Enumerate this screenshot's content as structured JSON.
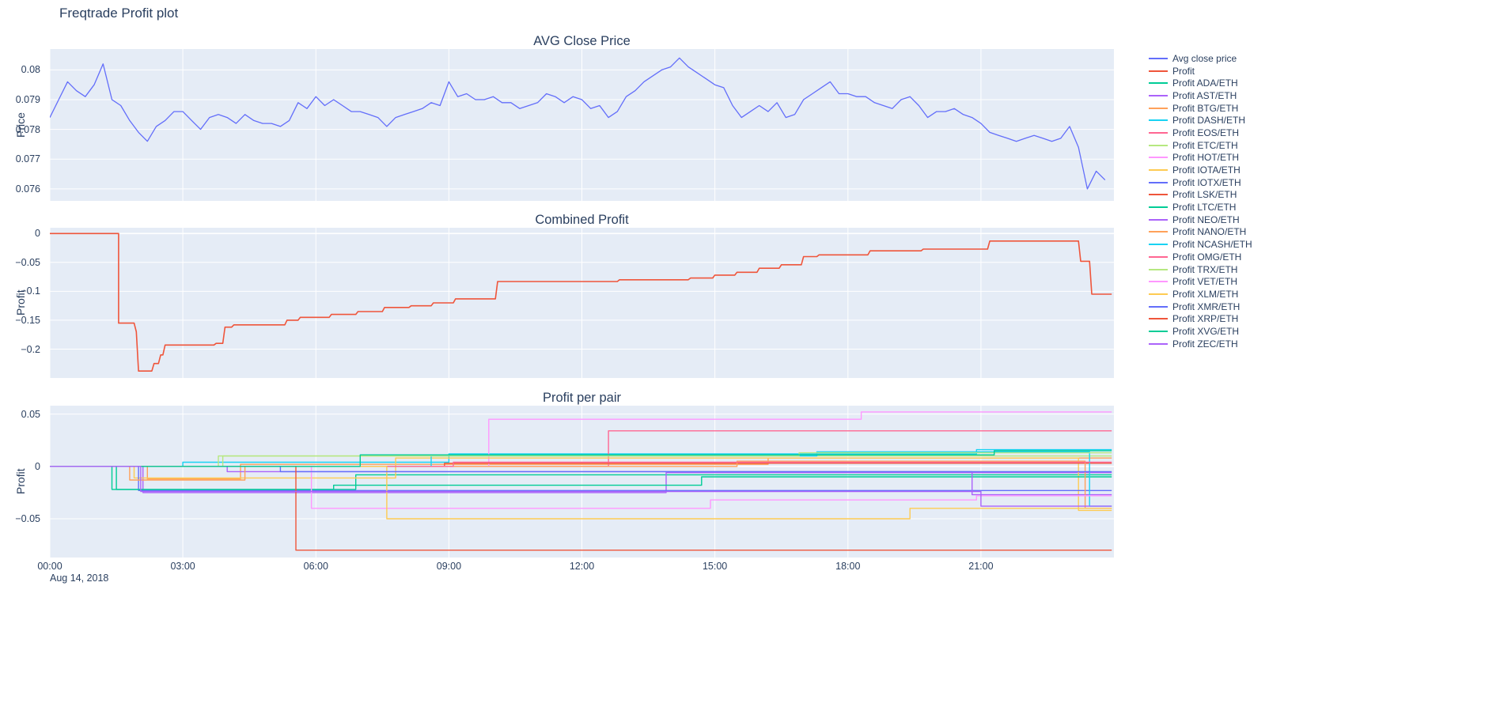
{
  "title": "Freqtrade Profit plot",
  "colors": {
    "plot_bg": "#E5ECF6",
    "grid": "#FFFFFF",
    "text": "#2A3F5F",
    "accent_blue": "#636EFA",
    "accent_red": "#EF553B"
  },
  "x_axis": {
    "range": [
      0,
      24
    ],
    "ticks": [
      0,
      3,
      6,
      9,
      12,
      15,
      18,
      21
    ],
    "tick_labels": [
      "00:00",
      "03:00",
      "06:00",
      "09:00",
      "12:00",
      "15:00",
      "18:00",
      "21:00"
    ],
    "date_label": "Aug 14, 2018"
  },
  "legend": {
    "items": [
      {
        "label": "Avg close price",
        "color": "#636EFA"
      },
      {
        "label": "Profit",
        "color": "#EF553B"
      },
      {
        "label": "Profit ADA/ETH",
        "color": "#00CC96"
      },
      {
        "label": "Profit AST/ETH",
        "color": "#AB63FA"
      },
      {
        "label": "Profit BTG/ETH",
        "color": "#FFA15A"
      },
      {
        "label": "Profit DASH/ETH",
        "color": "#19D3F3"
      },
      {
        "label": "Profit EOS/ETH",
        "color": "#FF6692"
      },
      {
        "label": "Profit ETC/ETH",
        "color": "#B6E880"
      },
      {
        "label": "Profit HOT/ETH",
        "color": "#FF97FF"
      },
      {
        "label": "Profit IOTA/ETH",
        "color": "#FECB52"
      },
      {
        "label": "Profit IOTX/ETH",
        "color": "#636EFA"
      },
      {
        "label": "Profit LSK/ETH",
        "color": "#EF553B"
      },
      {
        "label": "Profit LTC/ETH",
        "color": "#00CC96"
      },
      {
        "label": "Profit NEO/ETH",
        "color": "#AB63FA"
      },
      {
        "label": "Profit NANO/ETH",
        "color": "#FFA15A"
      },
      {
        "label": "Profit NCASH/ETH",
        "color": "#19D3F3"
      },
      {
        "label": "Profit OMG/ETH",
        "color": "#FF6692"
      },
      {
        "label": "Profit TRX/ETH",
        "color": "#B6E880"
      },
      {
        "label": "Profit VET/ETH",
        "color": "#FF97FF"
      },
      {
        "label": "Profit XLM/ETH",
        "color": "#FECB52"
      },
      {
        "label": "Profit XMR/ETH",
        "color": "#636EFA"
      },
      {
        "label": "Profit XRP/ETH",
        "color": "#EF553B"
      },
      {
        "label": "Profit XVG/ETH",
        "color": "#00CC96"
      },
      {
        "label": "Profit ZEC/ETH",
        "color": "#AB63FA"
      }
    ]
  },
  "chart_data": [
    {
      "type": "line",
      "title": "AVG Close Price",
      "ylabel": "Price",
      "ylim": [
        0.0756,
        0.0807
      ],
      "yticks": [
        0.08,
        0.079,
        0.078,
        0.077,
        0.076
      ],
      "ytick_labels": [
        "0.08",
        "0.079",
        "0.078",
        "0.077",
        "0.076"
      ],
      "series": [
        {
          "name": "Avg close price",
          "color": "#636EFA",
          "width": 1.3,
          "x_start": 0,
          "x_step": 0.2,
          "y": [
            0.0784,
            0.079,
            0.0796,
            0.0793,
            0.0791,
            0.0795,
            0.0802,
            0.079,
            0.0788,
            0.0783,
            0.0779,
            0.0776,
            0.0781,
            0.0783,
            0.0786,
            0.0786,
            0.0783,
            0.078,
            0.0784,
            0.0785,
            0.0784,
            0.0782,
            0.0785,
            0.0783,
            0.0782,
            0.0782,
            0.0781,
            0.0783,
            0.0789,
            0.0787,
            0.0791,
            0.0788,
            0.079,
            0.0788,
            0.0786,
            0.0786,
            0.0785,
            0.0784,
            0.0781,
            0.0784,
            0.0785,
            0.0786,
            0.0787,
            0.0789,
            0.0788,
            0.0796,
            0.0791,
            0.0792,
            0.079,
            0.079,
            0.0791,
            0.0789,
            0.0789,
            0.0787,
            0.0788,
            0.0789,
            0.0792,
            0.0791,
            0.0789,
            0.0791,
            0.079,
            0.0787,
            0.0788,
            0.0784,
            0.0786,
            0.0791,
            0.0793,
            0.0796,
            0.0798,
            0.08,
            0.0801,
            0.0804,
            0.0801,
            0.0799,
            0.0797,
            0.0795,
            0.0794,
            0.0788,
            0.0784,
            0.0786,
            0.0788,
            0.0786,
            0.0789,
            0.0784,
            0.0785,
            0.079,
            0.0792,
            0.0794,
            0.0796,
            0.0792,
            0.0792,
            0.0791,
            0.0791,
            0.0789,
            0.0788,
            0.0787,
            0.079,
            0.0791,
            0.0788,
            0.0784,
            0.0786,
            0.0786,
            0.0787,
            0.0785,
            0.0784,
            0.0782,
            0.0779,
            0.0778,
            0.0777,
            0.0776,
            0.0777,
            0.0778,
            0.0777,
            0.0776,
            0.0777,
            0.0781,
            0.0774,
            0.076,
            0.0766,
            0.0763
          ]
        }
      ]
    },
    {
      "type": "line",
      "title": "Combined Profit",
      "ylabel": "Profit",
      "ylim": [
        -0.25,
        0.01
      ],
      "yticks": [
        0,
        -0.05,
        -0.1,
        -0.15,
        -0.2
      ],
      "ytick_labels": [
        "0",
        "−0.05",
        "−0.1",
        "−0.15",
        "−0.2"
      ],
      "series": [
        {
          "name": "Profit",
          "color": "#EF553B",
          "width": 1.6,
          "x": [
            0,
            1.55,
            1.55,
            1.9,
            1.95,
            2.0,
            2.3,
            2.35,
            2.45,
            2.5,
            2.55,
            2.6,
            3.7,
            3.75,
            3.9,
            3.95,
            4.1,
            4.15,
            5.3,
            5.35,
            5.6,
            5.65,
            6.3,
            6.35,
            6.9,
            6.95,
            7.5,
            7.55,
            8.1,
            8.15,
            8.6,
            8.65,
            9.1,
            9.15,
            10.05,
            10.1,
            12.8,
            12.85,
            14.4,
            14.45,
            14.95,
            15.0,
            15.45,
            15.5,
            15.95,
            16.0,
            16.45,
            16.5,
            16.95,
            17.0,
            17.3,
            17.35,
            18.45,
            18.5,
            19.65,
            19.7,
            21.15,
            21.2,
            23.2,
            23.25,
            23.45,
            23.5,
            23.95
          ],
          "y": [
            0,
            0,
            -0.155,
            -0.155,
            -0.17,
            -0.238,
            -0.238,
            -0.225,
            -0.225,
            -0.21,
            -0.21,
            -0.193,
            -0.193,
            -0.19,
            -0.19,
            -0.162,
            -0.162,
            -0.158,
            -0.158,
            -0.15,
            -0.15,
            -0.145,
            -0.145,
            -0.14,
            -0.14,
            -0.135,
            -0.135,
            -0.128,
            -0.128,
            -0.125,
            -0.125,
            -0.12,
            -0.12,
            -0.113,
            -0.113,
            -0.083,
            -0.083,
            -0.08,
            -0.08,
            -0.077,
            -0.077,
            -0.072,
            -0.072,
            -0.067,
            -0.067,
            -0.06,
            -0.06,
            -0.054,
            -0.054,
            -0.04,
            -0.04,
            -0.037,
            -0.037,
            -0.03,
            -0.03,
            -0.027,
            -0.027,
            -0.013,
            -0.013,
            -0.048,
            -0.048,
            -0.105,
            -0.105
          ]
        }
      ]
    },
    {
      "type": "line",
      "title": "Profit per pair",
      "ylabel": "Profit",
      "ylim": [
        -0.087,
        0.058
      ],
      "yticks": [
        0.05,
        0,
        -0.05
      ],
      "ytick_labels": [
        "0.05",
        "0",
        "−0.05"
      ],
      "series": [
        {
          "name": "Profit ADA/ETH",
          "color": "#00CC96",
          "width": 1.4,
          "x": [
            0,
            1.4,
            1.4,
            6.9,
            6.9,
            23.95
          ],
          "y": [
            0,
            0,
            -0.022,
            -0.022,
            -0.008,
            -0.008
          ]
        },
        {
          "name": "Profit AST/ETH",
          "color": "#AB63FA",
          "width": 1.4,
          "x": [
            0,
            2.1,
            2.1,
            13.9,
            13.9,
            23.95
          ],
          "y": [
            0,
            0,
            -0.025,
            -0.025,
            -0.006,
            -0.006
          ]
        },
        {
          "name": "Profit BTG/ETH",
          "color": "#FFA15A",
          "width": 1.4,
          "x": [
            0,
            2.2,
            2.2,
            4.3,
            4.3,
            16.2,
            16.2,
            23.95
          ],
          "y": [
            0,
            0,
            -0.012,
            -0.012,
            0.002,
            0.002,
            0.008,
            0.008
          ]
        },
        {
          "name": "Profit DASH/ETH",
          "color": "#19D3F3",
          "width": 1.4,
          "x": [
            0,
            3.0,
            3.0,
            9.0,
            9.0,
            20.9,
            20.9,
            23.95
          ],
          "y": [
            0,
            0,
            0.004,
            0.004,
            0.012,
            0.012,
            0.016,
            0.016
          ]
        },
        {
          "name": "Profit EOS/ETH",
          "color": "#FF6692",
          "width": 1.4,
          "x": [
            0,
            12.6,
            12.6,
            23.95
          ],
          "y": [
            0,
            0,
            0.034,
            0.034
          ]
        },
        {
          "name": "Profit ETC/ETH",
          "color": "#B6E880",
          "width": 1.4,
          "x": [
            0,
            3.9,
            3.9,
            23.95
          ],
          "y": [
            0,
            0,
            0.01,
            0.01
          ]
        },
        {
          "name": "Profit HOT/ETH",
          "color": "#FF97FF",
          "width": 1.4,
          "x": [
            0,
            9.9,
            9.9,
            18.3,
            18.3,
            23.95
          ],
          "y": [
            0,
            0,
            0.045,
            0.045,
            0.052,
            0.052
          ]
        },
        {
          "name": "Profit IOTA/ETH",
          "color": "#FECB52",
          "width": 1.4,
          "x": [
            0,
            1.9,
            1.9,
            7.8,
            7.8,
            23.2,
            23.2,
            23.95
          ],
          "y": [
            0,
            0,
            -0.011,
            -0.011,
            0.008,
            0.008,
            -0.042,
            -0.042
          ]
        },
        {
          "name": "Profit IOTX/ETH",
          "color": "#636EFA",
          "width": 1.4,
          "x": [
            0,
            2.0,
            2.0,
            23.95
          ],
          "y": [
            0,
            0,
            -0.023,
            -0.023
          ]
        },
        {
          "name": "Profit LSK/ETH",
          "color": "#EF553B",
          "width": 1.4,
          "x": [
            0,
            8.9,
            8.9,
            23.95
          ],
          "y": [
            0,
            0,
            0.003,
            0.003
          ]
        },
        {
          "name": "Profit LTC/ETH",
          "color": "#00CC96",
          "width": 1.4,
          "x": [
            0,
            1.5,
            1.5,
            6.4,
            6.4,
            14.7,
            14.7,
            23.95
          ],
          "y": [
            0,
            0,
            -0.022,
            -0.022,
            -0.018,
            -0.018,
            -0.01,
            -0.01
          ]
        },
        {
          "name": "Profit NEO/ETH",
          "color": "#AB63FA",
          "width": 1.4,
          "x": [
            0,
            4.0,
            4.0,
            20.8,
            20.8,
            23.95
          ],
          "y": [
            0,
            0,
            -0.005,
            -0.005,
            -0.027,
            -0.027
          ]
        },
        {
          "name": "Profit NANO/ETH",
          "color": "#FFA15A",
          "width": 1.4,
          "x": [
            0,
            1.8,
            1.8,
            4.4,
            4.4,
            15.5,
            15.5,
            23.35,
            23.35,
            23.95
          ],
          "y": [
            0,
            0,
            -0.013,
            -0.013,
            0,
            0,
            0.005,
            0.005,
            -0.04,
            -0.04
          ]
        },
        {
          "name": "Profit NCASH/ETH",
          "color": "#19D3F3",
          "width": 1.4,
          "x": [
            0,
            8.6,
            8.6,
            17.3,
            17.3,
            23.45,
            23.45,
            23.95
          ],
          "y": [
            0,
            0,
            0.01,
            0.01,
            0.014,
            0.014,
            -0.038,
            -0.038
          ]
        },
        {
          "name": "Profit OMG/ETH",
          "color": "#FF6692",
          "width": 1.4,
          "x": [
            0,
            9.1,
            9.1,
            23.95
          ],
          "y": [
            0,
            0,
            0.004,
            0.004
          ]
        },
        {
          "name": "Profit TRX/ETH",
          "color": "#B6E880",
          "width": 1.4,
          "x": [
            0,
            3.8,
            3.8,
            16.9,
            16.9,
            23.95
          ],
          "y": [
            0,
            0,
            0.01,
            0.01,
            0.013,
            0.013
          ]
        },
        {
          "name": "Profit VET/ETH",
          "color": "#FF97FF",
          "width": 1.4,
          "x": [
            0,
            5.9,
            5.9,
            14.9,
            14.9,
            20.9,
            20.9,
            23.95
          ],
          "y": [
            0,
            0,
            -0.04,
            -0.04,
            -0.032,
            -0.032,
            -0.028,
            -0.028
          ]
        },
        {
          "name": "Profit XLM/ETH",
          "color": "#FECB52",
          "width": 1.4,
          "x": [
            0,
            7.6,
            7.6,
            19.4,
            19.4,
            23.95
          ],
          "y": [
            0,
            0,
            -0.05,
            -0.05,
            -0.04,
            -0.04
          ]
        },
        {
          "name": "Profit XMR/ETH",
          "color": "#636EFA",
          "width": 1.4,
          "x": [
            0,
            5.2,
            5.2,
            23.95
          ],
          "y": [
            0,
            0,
            -0.005,
            -0.005
          ]
        },
        {
          "name": "Profit XRP/ETH",
          "color": "#EF553B",
          "width": 1.4,
          "x": [
            0,
            5.55,
            5.55,
            23.95
          ],
          "y": [
            0,
            0,
            -0.08,
            -0.08
          ]
        },
        {
          "name": "Profit XVG/ETH",
          "color": "#00CC96",
          "width": 1.4,
          "x": [
            0,
            7.0,
            7.0,
            21.3,
            21.3,
            23.95
          ],
          "y": [
            0,
            0,
            0.011,
            0.011,
            0.015,
            0.015
          ]
        },
        {
          "name": "Profit ZEC/ETH",
          "color": "#AB63FA",
          "width": 1.4,
          "x": [
            0,
            2.05,
            2.05,
            21.0,
            21.0,
            23.95
          ],
          "y": [
            0,
            0,
            -0.024,
            -0.024,
            -0.038,
            -0.038
          ]
        }
      ]
    }
  ]
}
